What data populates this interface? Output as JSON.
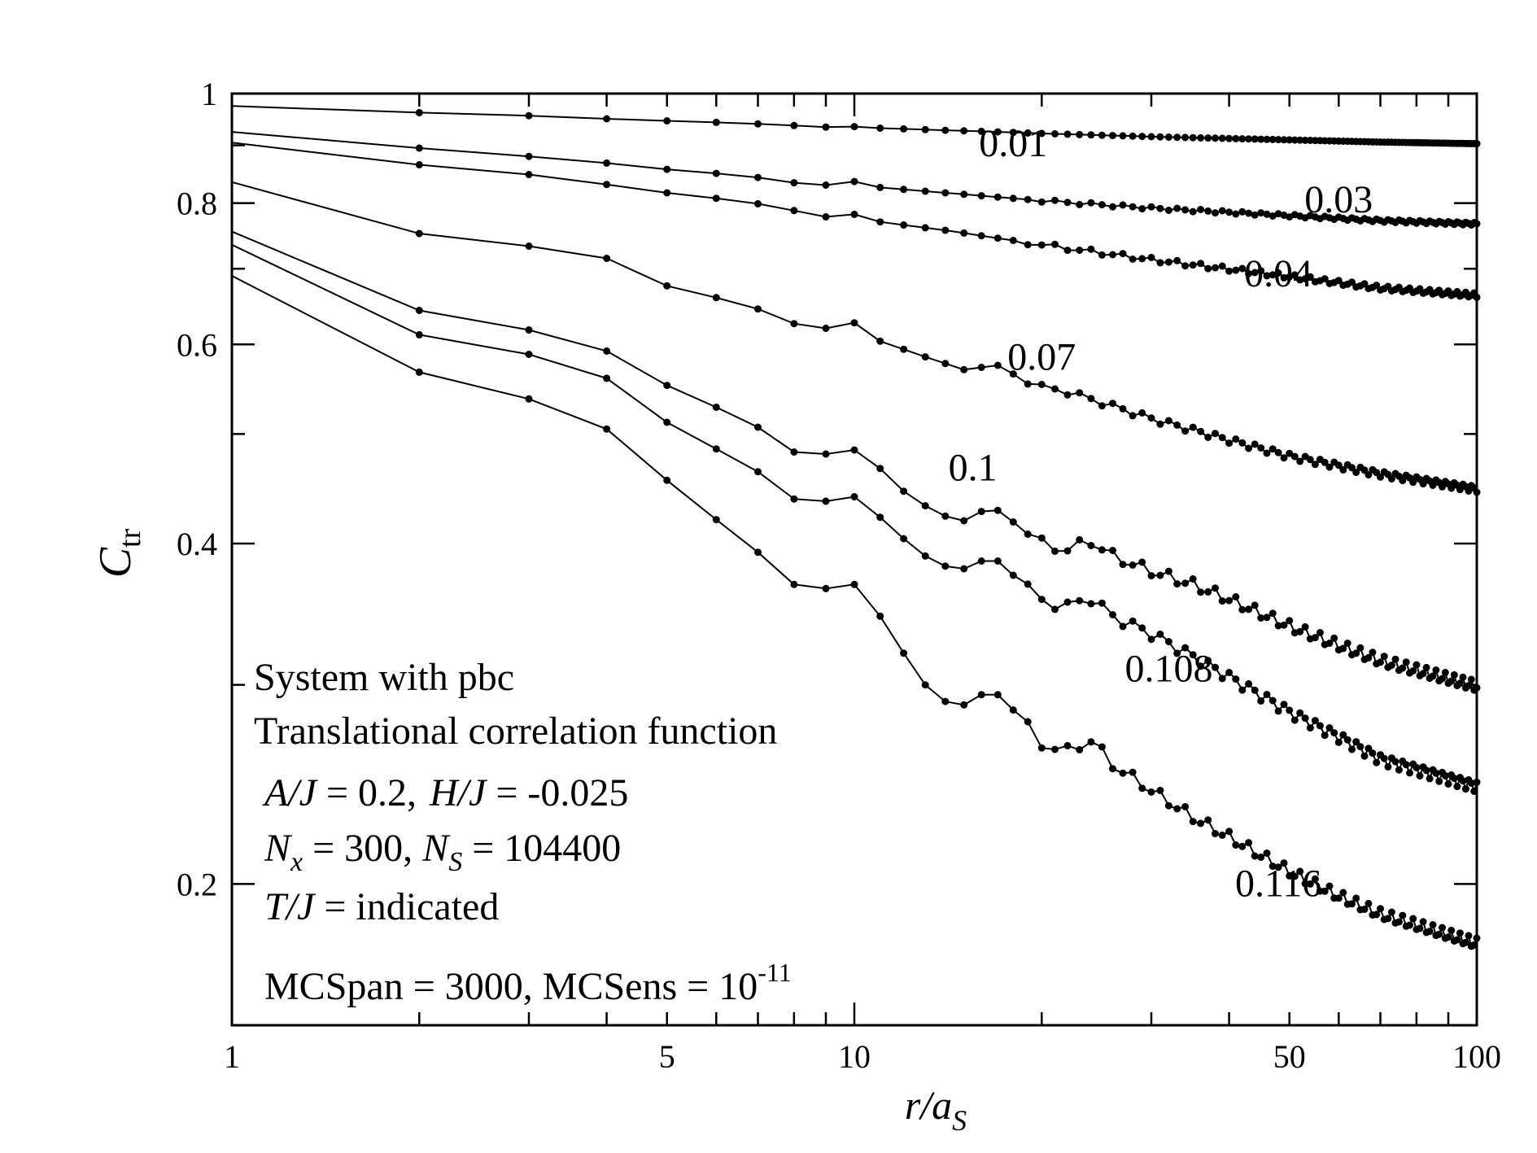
{
  "chart_data": {
    "type": "line",
    "xscale": "log",
    "yscale": "log",
    "xlim": [
      1,
      100
    ],
    "ylim": [
      0.15,
      1
    ],
    "xlabel": {
      "italic": "r/a",
      "sub": "S"
    },
    "ylabel": {
      "main": "C",
      "sub": "tr"
    },
    "x_tick_labels": [
      {
        "value": 1,
        "label": "1"
      },
      {
        "value": 5,
        "label": "5"
      },
      {
        "value": 10,
        "label": "10"
      },
      {
        "value": 50,
        "label": "50"
      },
      {
        "value": 100,
        "label": "100"
      }
    ],
    "y_tick_labels": [
      {
        "value": 1,
        "label": "1"
      },
      {
        "value": 0.8,
        "label": "0.8"
      },
      {
        "value": 0.6,
        "label": "0.6"
      },
      {
        "value": 0.4,
        "label": "0.4"
      },
      {
        "value": 0.2,
        "label": "0.2"
      }
    ],
    "series": [
      {
        "name": "0.01",
        "label_at": [
          18,
          0.88
        ],
        "points": [
          [
            1,
            0.975
          ],
          [
            2,
            0.962
          ],
          [
            3,
            0.956
          ],
          [
            4,
            0.95
          ],
          [
            5,
            0.946
          ],
          [
            6,
            0.943
          ],
          [
            7,
            0.94
          ],
          [
            8,
            0.937
          ],
          [
            9,
            0.934
          ],
          [
            10,
            0.935
          ],
          [
            11,
            0.932
          ],
          [
            14,
            0.928
          ],
          [
            17,
            0.925
          ],
          [
            20,
            0.922
          ],
          [
            30,
            0.916
          ],
          [
            50,
            0.91
          ],
          [
            70,
            0.906
          ],
          [
            100,
            0.903
          ]
        ],
        "oscillation": 0.0
      },
      {
        "name": "0.03",
        "label_at": [
          60,
          0.785
        ],
        "points": [
          [
            1,
            0.925
          ],
          [
            2,
            0.895
          ],
          [
            3,
            0.88
          ],
          [
            4,
            0.868
          ],
          [
            5,
            0.857
          ],
          [
            6,
            0.85
          ],
          [
            7,
            0.843
          ],
          [
            8,
            0.834
          ],
          [
            9,
            0.83
          ],
          [
            10,
            0.836
          ],
          [
            11,
            0.826
          ],
          [
            14,
            0.817
          ],
          [
            17,
            0.81
          ],
          [
            20,
            0.804
          ],
          [
            30,
            0.792
          ],
          [
            50,
            0.78
          ],
          [
            70,
            0.772
          ],
          [
            100,
            0.767
          ]
        ],
        "oscillation": 0.003
      },
      {
        "name": "0.04",
        "label_at": [
          48,
          0.675
        ],
        "points": [
          [
            1,
            0.905
          ],
          [
            2,
            0.865
          ],
          [
            3,
            0.848
          ],
          [
            4,
            0.831
          ],
          [
            5,
            0.817
          ],
          [
            6,
            0.808
          ],
          [
            7,
            0.799
          ],
          [
            8,
            0.788
          ],
          [
            9,
            0.778
          ],
          [
            10,
            0.782
          ],
          [
            11,
            0.77
          ],
          [
            14,
            0.757
          ],
          [
            17,
            0.745
          ],
          [
            20,
            0.735
          ],
          [
            30,
            0.713
          ],
          [
            50,
            0.689
          ],
          [
            70,
            0.673
          ],
          [
            100,
            0.663
          ]
        ],
        "oscillation": 0.005
      },
      {
        "name": "0.07",
        "label_at": [
          20,
          0.57
        ],
        "points": [
          [
            1,
            0.835
          ],
          [
            2,
            0.752
          ],
          [
            3,
            0.733
          ],
          [
            4,
            0.715
          ],
          [
            5,
            0.676
          ],
          [
            6,
            0.66
          ],
          [
            7,
            0.645
          ],
          [
            8,
            0.626
          ],
          [
            9,
            0.62
          ],
          [
            10,
            0.627
          ],
          [
            11,
            0.604
          ],
          [
            13,
            0.585
          ],
          [
            15,
            0.57
          ],
          [
            17,
            0.575
          ],
          [
            18,
            0.565
          ],
          [
            20,
            0.55
          ],
          [
            22,
            0.545
          ],
          [
            25,
            0.533
          ],
          [
            30,
            0.516
          ],
          [
            40,
            0.494
          ],
          [
            50,
            0.478
          ],
          [
            70,
            0.461
          ],
          [
            100,
            0.447
          ]
        ],
        "oscillation": 0.007
      },
      {
        "name": "0.1",
        "label_at": [
          15.5,
          0.455
        ],
        "points": [
          [
            1,
            0.755
          ],
          [
            2,
            0.643
          ],
          [
            3,
            0.618
          ],
          [
            4,
            0.592
          ],
          [
            5,
            0.552
          ],
          [
            6,
            0.528
          ],
          [
            7,
            0.507
          ],
          [
            8,
            0.482
          ],
          [
            9,
            0.48
          ],
          [
            10,
            0.484
          ],
          [
            11,
            0.466
          ],
          [
            12,
            0.445
          ],
          [
            13,
            0.432
          ],
          [
            14,
            0.423
          ],
          [
            15,
            0.419
          ],
          [
            16,
            0.427
          ],
          [
            17,
            0.428
          ],
          [
            18,
            0.418
          ],
          [
            20,
            0.4
          ],
          [
            22,
            0.395
          ],
          [
            24,
            0.402
          ],
          [
            26,
            0.39
          ],
          [
            30,
            0.378
          ],
          [
            35,
            0.368
          ],
          [
            40,
            0.357
          ],
          [
            50,
            0.338
          ],
          [
            60,
            0.325
          ],
          [
            70,
            0.315
          ],
          [
            100,
            0.299
          ]
        ],
        "oscillation": 0.012
      },
      {
        "name": "0.108",
        "label_at": [
          32,
          0.302
        ],
        "points": [
          [
            1,
            0.735
          ],
          [
            2,
            0.612
          ],
          [
            3,
            0.588
          ],
          [
            4,
            0.56
          ],
          [
            5,
            0.512
          ],
          [
            6,
            0.485
          ],
          [
            7,
            0.463
          ],
          [
            8,
            0.438
          ],
          [
            9,
            0.436
          ],
          [
            10,
            0.44
          ],
          [
            11,
            0.422
          ],
          [
            12,
            0.404
          ],
          [
            13,
            0.39
          ],
          [
            14,
            0.382
          ],
          [
            15,
            0.38
          ],
          [
            16,
            0.386
          ],
          [
            17,
            0.386
          ],
          [
            18,
            0.375
          ],
          [
            20,
            0.356
          ],
          [
            22,
            0.352
          ],
          [
            24,
            0.358
          ],
          [
            26,
            0.345
          ],
          [
            30,
            0.333
          ],
          [
            35,
            0.318
          ],
          [
            40,
            0.305
          ],
          [
            50,
            0.284
          ],
          [
            60,
            0.27
          ],
          [
            70,
            0.258
          ],
          [
            100,
            0.244
          ]
        ],
        "oscillation": 0.012
      },
      {
        "name": "0.116",
        "label_at": [
          48,
          0.195
        ],
        "points": [
          [
            1,
            0.69
          ],
          [
            2,
            0.567
          ],
          [
            3,
            0.537
          ],
          [
            4,
            0.505
          ],
          [
            5,
            0.455
          ],
          [
            6,
            0.42
          ],
          [
            7,
            0.393
          ],
          [
            8,
            0.368
          ],
          [
            9,
            0.365
          ],
          [
            10,
            0.368
          ],
          [
            11,
            0.345
          ],
          [
            12,
            0.32
          ],
          [
            13,
            0.3
          ],
          [
            14,
            0.29
          ],
          [
            15,
            0.288
          ],
          [
            16,
            0.294
          ],
          [
            17,
            0.294
          ],
          [
            18,
            0.285
          ],
          [
            20,
            0.266
          ],
          [
            22,
            0.262
          ],
          [
            24,
            0.268
          ],
          [
            26,
            0.255
          ],
          [
            30,
            0.242
          ],
          [
            35,
            0.229
          ],
          [
            40,
            0.22
          ],
          [
            50,
            0.205
          ],
          [
            60,
            0.195
          ],
          [
            70,
            0.188
          ],
          [
            100,
            0.177
          ]
        ],
        "oscillation": 0.012
      }
    ],
    "annotation_lines": [
      "System with pbc",
      "Translational correlation function"
    ],
    "params": {
      "line1": {
        "a_label": "A/J",
        "a_value": " = 0.2,",
        "h_label": "H/J",
        "h_value": " = -0.025"
      },
      "line2": {
        "nx_main": "N",
        "nx_sub": "x",
        "nx_value": " = 300, ",
        "ns_main": "N",
        "ns_sub": "S",
        "ns_value": " = 104400"
      },
      "line3": {
        "t_label": "T/J",
        "t_value": " = indicated"
      },
      "line4": {
        "text": "MCSpan = 3000, MCSens = 10",
        "exp": "-11"
      }
    }
  }
}
